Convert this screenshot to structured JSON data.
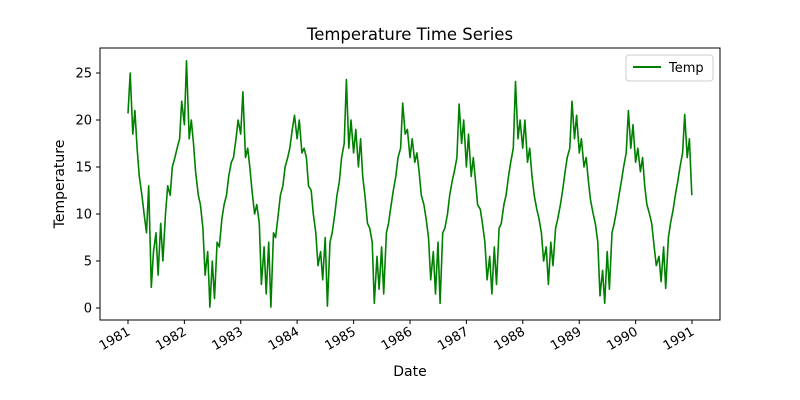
{
  "chart_data": {
    "type": "line",
    "title": "Temperature Time Series",
    "xlabel": "Date",
    "ylabel": "Temperature",
    "xlim": [
      "1981-01-01",
      "1990-12-31"
    ],
    "ylim": [
      0,
      26.3
    ],
    "x_ticks": [
      "1981",
      "1982",
      "1983",
      "1984",
      "1985",
      "1986",
      "1987",
      "1988",
      "1989",
      "1990",
      "1991"
    ],
    "y_ticks": [
      "0",
      "5",
      "10",
      "15",
      "20",
      "25"
    ],
    "legend": {
      "position": "top-right",
      "entries": [
        "Temp"
      ]
    },
    "grid": false,
    "series": [
      {
        "name": "Temp",
        "color": "#008000",
        "x": [
          "1981-01-01",
          "1981-01-15",
          "1981-02-01",
          "1981-02-15",
          "1981-03-01",
          "1981-03-15",
          "1981-04-01",
          "1981-04-15",
          "1981-05-01",
          "1981-05-15",
          "1981-06-01",
          "1981-06-15",
          "1981-07-01",
          "1981-07-15",
          "1981-08-01",
          "1981-08-15",
          "1981-09-01",
          "1981-09-15",
          "1981-10-01",
          "1981-10-15",
          "1981-11-01",
          "1981-11-15",
          "1981-12-01",
          "1981-12-15",
          "1982-01-01",
          "1982-01-15",
          "1982-02-01",
          "1982-02-15",
          "1982-03-01",
          "1982-03-15",
          "1982-04-01",
          "1982-04-15",
          "1982-05-01",
          "1982-05-15",
          "1982-06-01",
          "1982-06-15",
          "1982-07-01",
          "1982-07-15",
          "1982-08-01",
          "1982-08-15",
          "1982-09-01",
          "1982-09-15",
          "1982-10-01",
          "1982-10-15",
          "1982-11-01",
          "1982-11-15",
          "1982-12-01",
          "1982-12-15",
          "1983-01-01",
          "1983-01-15",
          "1983-02-01",
          "1983-02-15",
          "1983-03-01",
          "1983-03-15",
          "1983-04-01",
          "1983-04-15",
          "1983-05-01",
          "1983-05-15",
          "1983-06-01",
          "1983-06-15",
          "1983-07-01",
          "1983-07-15",
          "1983-08-01",
          "1983-08-15",
          "1983-09-01",
          "1983-09-15",
          "1983-10-01",
          "1983-10-15",
          "1983-11-01",
          "1983-11-15",
          "1983-12-01",
          "1983-12-15",
          "1984-01-01",
          "1984-01-15",
          "1984-02-01",
          "1984-02-15",
          "1984-03-01",
          "1984-03-15",
          "1984-04-01",
          "1984-04-15",
          "1984-05-01",
          "1984-05-15",
          "1984-06-01",
          "1984-06-15",
          "1984-07-01",
          "1984-07-15",
          "1984-08-01",
          "1984-08-15",
          "1984-09-01",
          "1984-09-15",
          "1984-10-01",
          "1984-10-15",
          "1984-11-01",
          "1984-11-15",
          "1984-12-01",
          "1984-12-15",
          "1985-01-01",
          "1985-01-15",
          "1985-02-01",
          "1985-02-15",
          "1985-03-01",
          "1985-03-15",
          "1985-04-01",
          "1985-04-15",
          "1985-05-01",
          "1985-05-15",
          "1985-06-01",
          "1985-06-15",
          "1985-07-01",
          "1985-07-15",
          "1985-08-01",
          "1985-08-15",
          "1985-09-01",
          "1985-09-15",
          "1985-10-01",
          "1985-10-15",
          "1985-11-01",
          "1985-11-15",
          "1985-12-01",
          "1985-12-15",
          "1986-01-01",
          "1986-01-15",
          "1986-02-01",
          "1986-02-15",
          "1986-03-01",
          "1986-03-15",
          "1986-04-01",
          "1986-04-15",
          "1986-05-01",
          "1986-05-15",
          "1986-06-01",
          "1986-06-15",
          "1986-07-01",
          "1986-07-15",
          "1986-08-01",
          "1986-08-15",
          "1986-09-01",
          "1986-09-15",
          "1986-10-01",
          "1986-10-15",
          "1986-11-01",
          "1986-11-15",
          "1986-12-01",
          "1986-12-15",
          "1987-01-01",
          "1987-01-15",
          "1987-02-01",
          "1987-02-15",
          "1987-03-01",
          "1987-03-15",
          "1987-04-01",
          "1987-04-15",
          "1987-05-01",
          "1987-05-15",
          "1987-06-01",
          "1987-06-15",
          "1987-07-01",
          "1987-07-15",
          "1987-08-01",
          "1987-08-15",
          "1987-09-01",
          "1987-09-15",
          "1987-10-01",
          "1987-10-15",
          "1987-11-01",
          "1987-11-15",
          "1987-12-01",
          "1987-12-15",
          "1988-01-01",
          "1988-01-15",
          "1988-02-01",
          "1988-02-15",
          "1988-03-01",
          "1988-03-15",
          "1988-04-01",
          "1988-04-15",
          "1988-05-01",
          "1988-05-15",
          "1988-06-01",
          "1988-06-15",
          "1988-07-01",
          "1988-07-15",
          "1988-08-01",
          "1988-08-15",
          "1988-09-01",
          "1988-09-15",
          "1988-10-01",
          "1988-10-15",
          "1988-11-01",
          "1988-11-15",
          "1988-12-01",
          "1988-12-15",
          "1989-01-01",
          "1989-01-15",
          "1989-02-01",
          "1989-02-15",
          "1989-03-01",
          "1989-03-15",
          "1989-04-01",
          "1989-04-15",
          "1989-05-01",
          "1989-05-15",
          "1989-06-01",
          "1989-06-15",
          "1989-07-01",
          "1989-07-15",
          "1989-08-01",
          "1989-08-15",
          "1989-09-01",
          "1989-09-15",
          "1989-10-01",
          "1989-10-15",
          "1989-11-01",
          "1989-11-15",
          "1989-12-01",
          "1989-12-15",
          "1990-01-01",
          "1990-01-15",
          "1990-02-01",
          "1990-02-15",
          "1990-03-01",
          "1990-03-15",
          "1990-04-01",
          "1990-04-15",
          "1990-05-01",
          "1990-05-15",
          "1990-06-01",
          "1990-06-15",
          "1990-07-01",
          "1990-07-15",
          "1990-08-01",
          "1990-08-15",
          "1990-09-01",
          "1990-09-15",
          "1990-10-01",
          "1990-10-15",
          "1990-11-01",
          "1990-11-15",
          "1990-12-01",
          "1990-12-15",
          "1990-12-31"
        ],
        "y": [
          20.7,
          25.0,
          18.5,
          21.0,
          17.0,
          14.0,
          12.0,
          10.0,
          8.0,
          13.0,
          2.2,
          6.0,
          8.0,
          3.5,
          9.0,
          5.0,
          10.0,
          13.0,
          12.0,
          15.0,
          16.0,
          17.0,
          18.0,
          22.0,
          19.5,
          26.3,
          18.0,
          20.0,
          17.5,
          14.5,
          12.0,
          11.0,
          8.5,
          3.5,
          6.0,
          0.1,
          5.0,
          1.0,
          7.0,
          6.5,
          9.5,
          11.0,
          12.0,
          14.0,
          15.5,
          16.0,
          18.0,
          20.0,
          18.5,
          23.0,
          16.0,
          17.0,
          15.0,
          12.5,
          10.0,
          11.0,
          9.0,
          2.5,
          6.5,
          1.5,
          7.0,
          0.1,
          8.0,
          7.5,
          10.0,
          12.0,
          13.0,
          15.0,
          16.0,
          17.0,
          19.0,
          20.5,
          18.0,
          20.0,
          16.5,
          17.0,
          16.0,
          13.0,
          12.5,
          10.0,
          8.0,
          4.5,
          6.0,
          3.0,
          7.5,
          0.2,
          7.0,
          8.0,
          10.0,
          12.0,
          13.5,
          16.0,
          17.5,
          24.3,
          17.0,
          20.0,
          16.5,
          19.0,
          15.0,
          18.0,
          14.0,
          12.0,
          9.0,
          8.5,
          7.0,
          0.5,
          5.5,
          2.0,
          6.5,
          1.5,
          8.0,
          9.0,
          11.0,
          12.5,
          14.0,
          16.0,
          17.0,
          21.8,
          18.5,
          19.0,
          16.0,
          18.0,
          15.5,
          16.5,
          14.5,
          12.0,
          11.0,
          9.5,
          7.5,
          3.0,
          6.0,
          1.5,
          7.0,
          0.5,
          8.0,
          8.5,
          10.0,
          12.0,
          13.5,
          14.5,
          16.0,
          21.7,
          17.5,
          20.0,
          15.0,
          18.5,
          14.0,
          16.0,
          13.5,
          11.0,
          10.5,
          9.0,
          7.0,
          3.0,
          5.5,
          1.5,
          6.5,
          2.5,
          8.5,
          9.0,
          11.0,
          12.0,
          14.0,
          15.5,
          17.0,
          24.1,
          18.0,
          20.0,
          17.0,
          20.0,
          15.5,
          17.0,
          14.0,
          12.0,
          10.5,
          9.5,
          8.0,
          5.0,
          6.5,
          2.5,
          7.0,
          4.5,
          8.5,
          9.5,
          11.0,
          12.5,
          14.5,
          16.0,
          17.0,
          22.0,
          18.0,
          20.5,
          16.5,
          18.0,
          15.0,
          16.0,
          13.5,
          11.5,
          10.0,
          9.0,
          7.0,
          1.3,
          4.0,
          0.5,
          6.0,
          2.0,
          8.0,
          9.0,
          10.5,
          12.0,
          13.5,
          15.0,
          16.5,
          21.0,
          17.0,
          19.5,
          15.5,
          17.0,
          14.5,
          16.0,
          13.0,
          11.0,
          10.0,
          9.0,
          6.5,
          4.5,
          5.5,
          2.8,
          6.5,
          2.1,
          7.5,
          9.0,
          10.5,
          12.0,
          13.5,
          15.0,
          16.5,
          20.6,
          16.0,
          18.0,
          12.0
        ]
      }
    ]
  }
}
